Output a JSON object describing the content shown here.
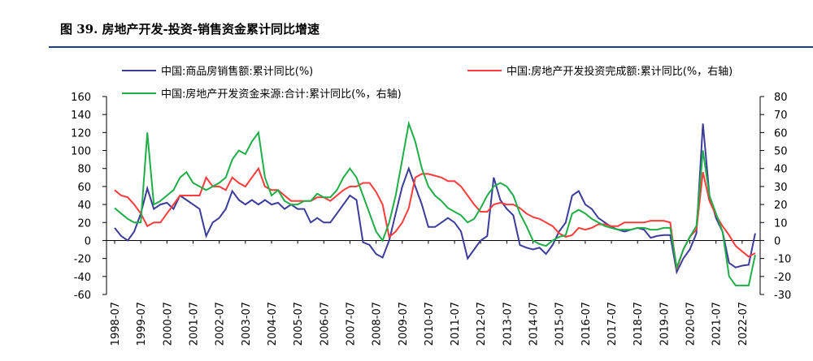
{
  "chart_data": {
    "type": "line",
    "title": "图 39. 房地产开发-投资-销售资金累计同比增速",
    "categories": [
      "1998-07",
      null,
      null,
      null,
      "1999-07",
      null,
      null,
      null,
      "2000-07",
      null,
      null,
      null,
      "2001-07",
      null,
      null,
      null,
      "2002-07",
      null,
      null,
      null,
      "2003-07",
      null,
      null,
      null,
      "2004-07",
      null,
      null,
      null,
      "2005-07",
      null,
      null,
      null,
      "2006-07",
      null,
      null,
      null,
      "2007-07",
      null,
      null,
      null,
      "2008-07",
      null,
      null,
      null,
      "2009-07",
      null,
      null,
      null,
      "2010-07",
      null,
      null,
      null,
      "2011-07",
      null,
      null,
      null,
      "2012-07",
      null,
      null,
      null,
      "2013-07",
      null,
      null,
      null,
      "2014-07",
      null,
      null,
      null,
      "2015-07",
      null,
      null,
      null,
      "2016-07",
      null,
      null,
      null,
      "2017-07",
      null,
      null,
      null,
      "2018-07",
      null,
      null,
      null,
      "2019-07",
      null,
      null,
      null,
      "2020-07",
      null,
      null,
      null,
      "2021-07",
      null,
      null,
      null,
      "2022-07",
      null,
      null
    ],
    "series": [
      {
        "name": "中国:商品房销售额:累计同比(%)",
        "color": "#3c3c9a",
        "values": [
          14,
          5,
          0,
          10,
          30,
          58,
          35,
          40,
          42,
          35,
          50,
          45,
          40,
          35,
          5,
          20,
          25,
          35,
          55,
          45,
          40,
          45,
          40,
          45,
          40,
          42,
          35,
          40,
          35,
          35,
          20,
          25,
          20,
          20,
          30,
          40,
          50,
          45,
          -2,
          -5,
          -15,
          -19,
          0,
          30,
          60,
          80,
          60,
          40,
          15,
          15,
          20,
          25,
          20,
          10,
          -20,
          -10,
          0,
          5,
          70,
          45,
          35,
          28,
          -5,
          -8,
          -10,
          -8,
          -15,
          -5,
          10,
          20,
          50,
          55,
          40,
          35,
          25,
          20,
          15,
          12,
          10,
          12,
          14,
          12,
          3,
          5,
          6,
          6,
          -35,
          -20,
          -10,
          8,
          130,
          50,
          25,
          10,
          -25,
          -30,
          -28,
          -27,
          8
        ]
      },
      {
        "name": "中国:房地产开发投资完成额:累计同比(%，右轴)",
        "color": "#ff3b3b",
        "axis": "y2",
        "values": [
          28,
          25,
          24,
          20,
          15,
          8,
          10,
          10,
          15,
          20,
          25,
          25,
          25,
          25,
          35,
          30,
          30,
          28,
          35,
          32,
          30,
          35,
          40,
          30,
          28,
          28,
          25,
          22,
          22,
          22,
          22,
          24,
          24,
          22,
          25,
          28,
          30,
          30,
          32,
          32,
          27,
          20,
          2,
          5,
          10,
          18,
          35,
          37,
          37,
          36,
          35,
          33,
          33,
          30,
          25,
          20,
          16,
          16,
          20,
          21,
          20,
          20,
          18,
          15,
          13,
          12,
          10,
          8,
          4,
          2,
          3,
          7,
          6,
          7,
          9,
          9,
          8,
          8,
          10,
          10,
          10,
          10,
          11,
          11,
          11,
          10,
          -16,
          -5,
          2,
          6,
          38,
          22,
          14,
          8,
          3,
          -3,
          -6,
          -9,
          -7
        ]
      },
      {
        "name": "中国:房地产开发资金来源:合计:累计同比(%，右轴)",
        "color": "#1fae48",
        "axis": "y2",
        "values": [
          18,
          15,
          12,
          10,
          10,
          60,
          20,
          22,
          25,
          28,
          35,
          38,
          32,
          30,
          28,
          30,
          32,
          35,
          45,
          50,
          48,
          55,
          60,
          35,
          25,
          28,
          22,
          20,
          20,
          22,
          22,
          26,
          24,
          24,
          28,
          35,
          40,
          35,
          25,
          15,
          5,
          0,
          10,
          25,
          45,
          65,
          55,
          40,
          30,
          25,
          22,
          18,
          16,
          14,
          10,
          12,
          18,
          25,
          30,
          32,
          30,
          25,
          15,
          8,
          0,
          -2,
          -3,
          0,
          2,
          3,
          15,
          17,
          15,
          12,
          10,
          8,
          7,
          6,
          6,
          6,
          7,
          7,
          6,
          6,
          7,
          7,
          -15,
          -5,
          2,
          8,
          50,
          25,
          15,
          5,
          -20,
          -25,
          -25,
          -25,
          -8
        ]
      }
    ],
    "ylim": [
      -60,
      160
    ],
    "yticks": [
      -60,
      -40,
      -20,
      0,
      20,
      40,
      60,
      80,
      100,
      120,
      140,
      160
    ],
    "y2lim": [
      -30,
      80
    ],
    "y2ticks": [
      -30,
      -20,
      -10,
      0,
      10,
      20,
      30,
      40,
      50,
      60,
      70,
      80
    ]
  }
}
